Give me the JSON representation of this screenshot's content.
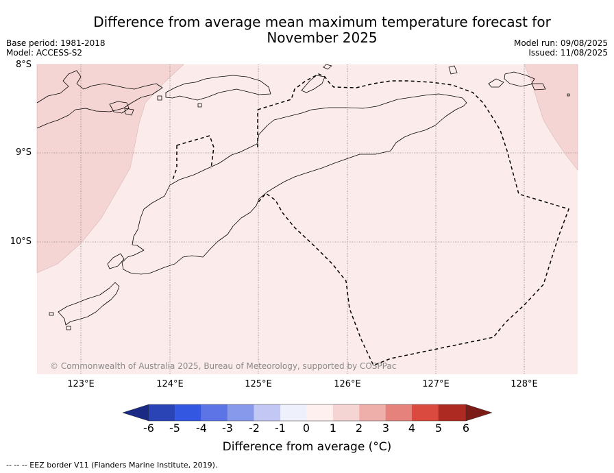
{
  "title": {
    "line1": "Difference from average mean maximum temperature forecast for",
    "line2": "November 2025"
  },
  "meta_left": {
    "base_period": "Base period: 1981-2018",
    "model": "Model: ACCESS-S2"
  },
  "meta_right": {
    "model_run": "Model run: 09/08/2025",
    "issued": "Issued: 11/08/2025"
  },
  "map": {
    "lat_labels": [
      "8°S",
      "9°S",
      "10°S"
    ],
    "lon_labels": [
      "123°E",
      "124°E",
      "125°E",
      "126°E",
      "127°E",
      "128°E"
    ],
    "copyright": "© Commonwealth of Australia 2025, Bureau of Meteorology, supported by COSPPac",
    "fill_colors": {
      "band_0_1": "#fbebea",
      "band_1_2": "#f5d5d3",
      "land_outline": "#000000"
    }
  },
  "colorbar": {
    "label": "Difference from average (°C)",
    "ticks": [
      "-6",
      "-5",
      "-4",
      "-3",
      "-2",
      "-1",
      "0",
      "1",
      "2",
      "3",
      "4",
      "5",
      "6"
    ],
    "colors": [
      "#1a2a84",
      "#2a44b6",
      "#3457e1",
      "#5c74e6",
      "#8799ea",
      "#c2c8f3",
      "#eef0fb",
      "#fdf0ee",
      "#f5d5d3",
      "#eeaea9",
      "#e5827b",
      "#db4a3f",
      "#ad2a22",
      "#7c1c17"
    ]
  },
  "footnote": "-- -- -- EEZ border V11 (Flanders Marine Institute, 2019)."
}
